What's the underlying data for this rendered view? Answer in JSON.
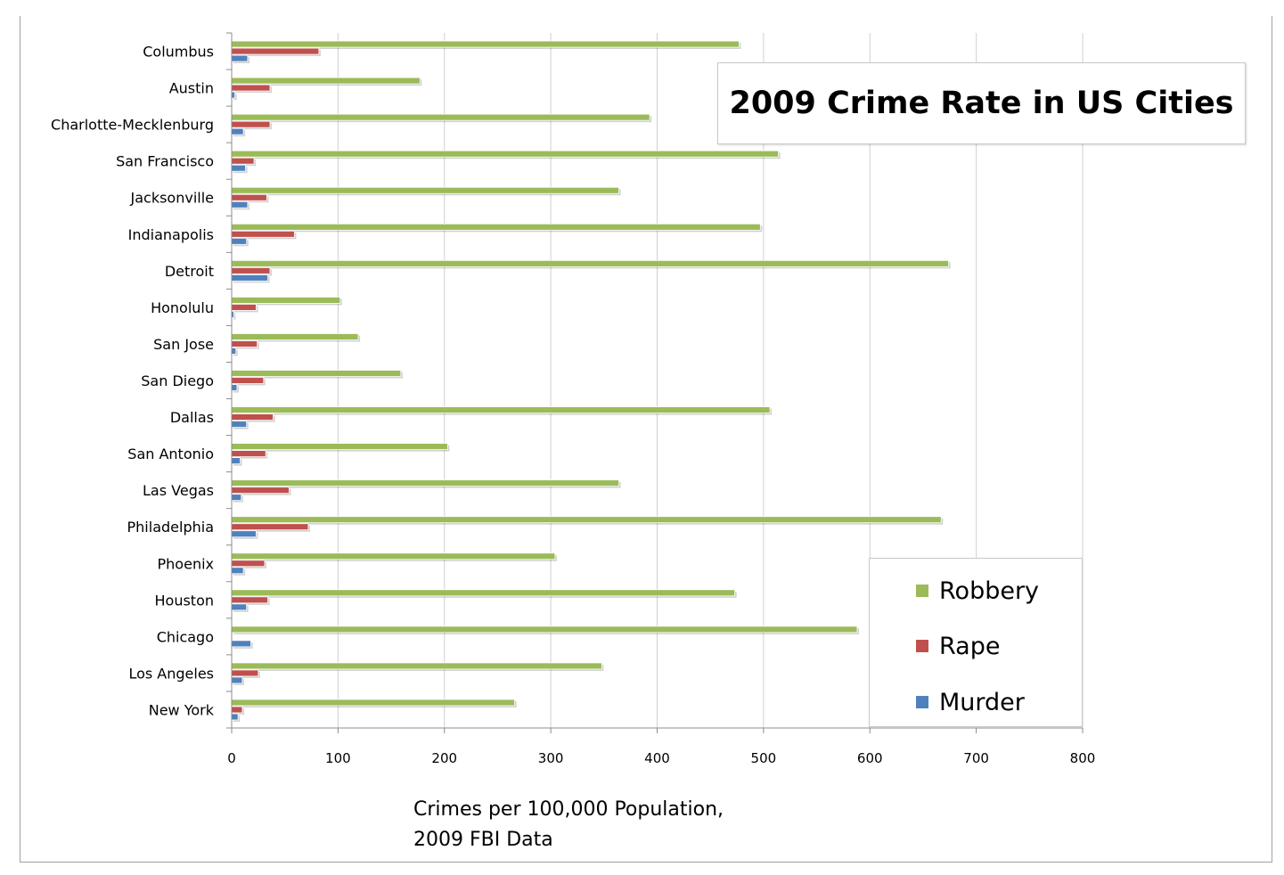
{
  "chart_data": {
    "type": "bar",
    "orientation": "horizontal",
    "title": "2009 Crime Rate in US Cities",
    "xlabel_line1": "Crimes per 100,000 Population,",
    "xlabel_line2": "2009 FBI Data",
    "xlim": [
      0,
      800
    ],
    "xticks": [
      0,
      100,
      200,
      300,
      400,
      500,
      600,
      700,
      800
    ],
    "grid": "vertical",
    "legend_position": "bottom-right",
    "categories": [
      "Columbus",
      "Austin",
      "Charlotte-Mecklenburg",
      "San Francisco",
      "Jacksonville",
      "Indianapolis",
      "Detroit",
      "Honolulu",
      "San Jose",
      "San Diego",
      "Dallas",
      "San Antonio",
      "Las Vegas",
      "Philadelphia",
      "Phoenix",
      "Houston",
      "Chicago",
      "Los Angeles",
      "New York"
    ],
    "series": [
      {
        "name": "Robbery",
        "color": "#9bbb59",
        "values": [
          477,
          177,
          393,
          514,
          364,
          497,
          674,
          102,
          119,
          159,
          506,
          203,
          364,
          667,
          304,
          473,
          588,
          348,
          266
        ]
      },
      {
        "name": "Rape",
        "color": "#c0504d",
        "values": [
          82,
          36,
          36,
          21,
          33,
          59,
          36,
          23,
          24,
          30,
          39,
          32,
          54,
          72,
          31,
          34,
          0,
          25,
          10
        ]
      },
      {
        "name": "Murder",
        "color": "#4f81bd",
        "values": [
          15,
          3,
          11,
          13,
          15,
          14,
          34,
          2,
          4,
          5,
          14,
          8,
          9,
          23,
          11,
          14,
          18,
          10,
          6
        ]
      }
    ]
  }
}
